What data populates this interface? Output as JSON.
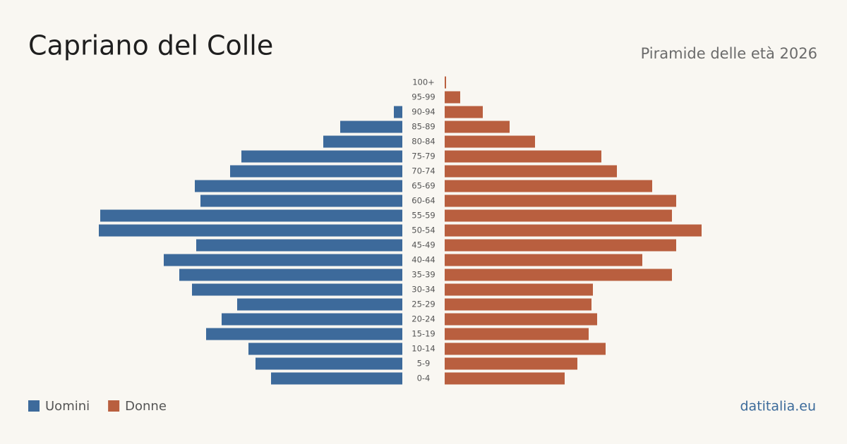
{
  "chart_data": {
    "type": "pyramid",
    "title": "Capriano del Colle",
    "subtitle": "Piramide delle età 2026",
    "source": "datitalia.eu",
    "categories": [
      "0-4",
      "5-9",
      "10-14",
      "15-19",
      "20-24",
      "25-29",
      "30-34",
      "35-39",
      "40-44",
      "45-49",
      "50-54",
      "55-59",
      "60-64",
      "65-69",
      "70-74",
      "75-79",
      "80-84",
      "85-89",
      "90-94",
      "95-99",
      "100+"
    ],
    "series": [
      {
        "name": "Uomini",
        "color": "#3d6a9b",
        "values": [
          93,
          104,
          109,
          139,
          128,
          117,
          149,
          158,
          169,
          146,
          215,
          214,
          143,
          147,
          122,
          114,
          56,
          44,
          6,
          0,
          0
        ]
      },
      {
        "name": "Donne",
        "color": "#b95f3f",
        "values": [
          85,
          94,
          114,
          102,
          108,
          104,
          105,
          161,
          140,
          164,
          182,
          161,
          164,
          147,
          122,
          111,
          64,
          46,
          27,
          11,
          1
        ]
      }
    ]
  }
}
